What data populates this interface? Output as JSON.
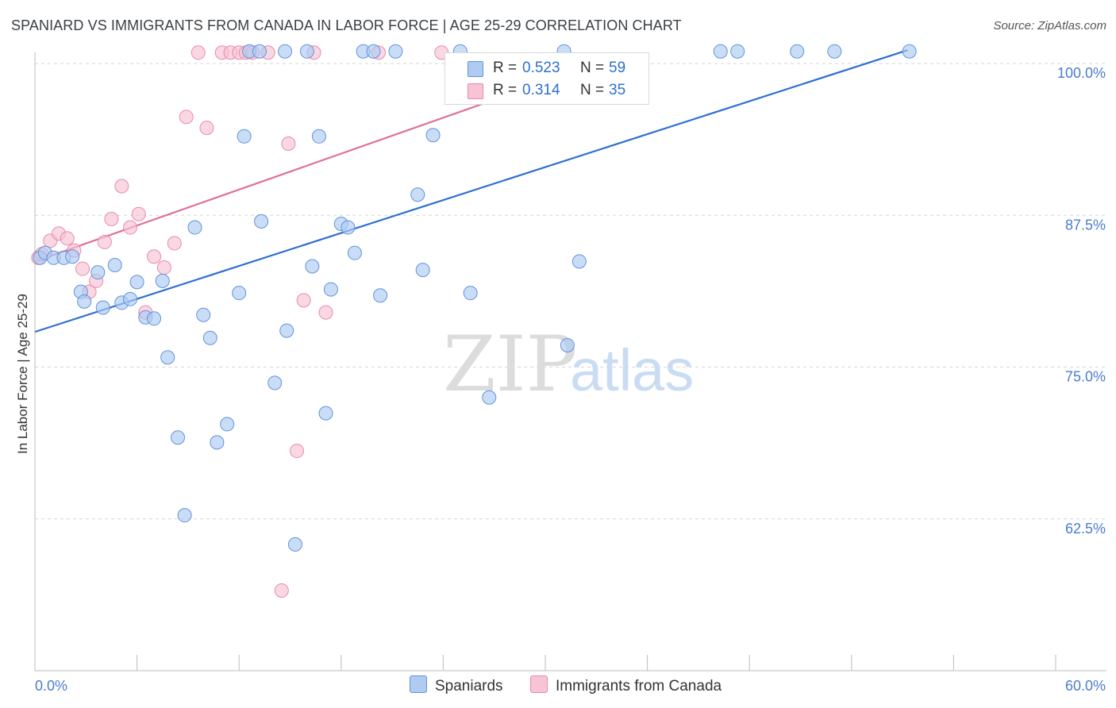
{
  "header": {
    "title": "SPANIARD VS IMMIGRANTS FROM CANADA IN LABOR FORCE | AGE 25-29 CORRELATION CHART",
    "source": "Source: ZipAtlas.com"
  },
  "watermark": {
    "zip": "ZIP",
    "atlas": "atlas"
  },
  "legend_top": [
    {
      "r_label": "R =",
      "r_value": "0.523",
      "n_label": "N =",
      "n_value": "59",
      "fill": "#aecbf2",
      "stroke": "#5f93dd"
    },
    {
      "r_label": "R =",
      "r_value": "0.314",
      "n_label": "N =",
      "n_value": "35",
      "fill": "#f8c3d4",
      "stroke": "#e98aa8"
    }
  ],
  "legend_bottom": [
    {
      "label": "Spaniards",
      "fill": "#aecbf2",
      "stroke": "#5f93dd"
    },
    {
      "label": "Immigrants from Canada",
      "fill": "#f8c3d4",
      "stroke": "#e98aa8"
    }
  ],
  "chart_data": {
    "type": "scatter",
    "title": "SPANIARD VS IMMIGRANTS FROM CANADA IN LABOR FORCE | AGE 25-29 CORRELATION CHART",
    "xlabel": "",
    "ylabel": "In Labor Force | Age 25-29",
    "xlim": [
      0,
      60
    ],
    "ylim": [
      50,
      100
    ],
    "x_tick_labels": [
      "0.0%",
      "60.0%"
    ],
    "y_ticks": [
      62.5,
      75.0,
      87.5,
      100.0
    ],
    "y_tick_labels": [
      "62.5%",
      "75.0%",
      "87.5%",
      "100.0%"
    ],
    "grid": "horizontal dashed",
    "legend_position": "top-center",
    "series": [
      {
        "name": "Spaniards",
        "color": "#5f93dd",
        "fill": "#aecbf2",
        "trend_line": {
          "x": [
            0,
            51.3
          ],
          "y": [
            77.9,
            101.1
          ]
        },
        "points": [
          [
            0.3,
            84.0
          ],
          [
            0.6,
            84.4
          ],
          [
            1.1,
            84.0
          ],
          [
            1.7,
            84.0
          ],
          [
            2.2,
            84.1
          ],
          [
            2.7,
            81.2
          ],
          [
            2.9,
            80.4
          ],
          [
            3.7,
            82.8
          ],
          [
            4.0,
            79.9
          ],
          [
            4.7,
            83.4
          ],
          [
            5.1,
            80.3
          ],
          [
            5.6,
            80.6
          ],
          [
            6.0,
            82.0
          ],
          [
            6.5,
            79.1
          ],
          [
            7.0,
            79.0
          ],
          [
            7.5,
            82.1
          ],
          [
            7.8,
            75.8
          ],
          [
            8.4,
            69.2
          ],
          [
            8.8,
            62.8
          ],
          [
            9.4,
            86.5
          ],
          [
            9.9,
            79.3
          ],
          [
            10.3,
            77.4
          ],
          [
            10.7,
            68.8
          ],
          [
            11.3,
            70.3
          ],
          [
            12.0,
            81.1
          ],
          [
            12.3,
            94.0
          ],
          [
            12.6,
            101.0
          ],
          [
            13.2,
            101.0
          ],
          [
            13.3,
            87.0
          ],
          [
            14.1,
            73.7
          ],
          [
            14.7,
            101.0
          ],
          [
            14.8,
            78.0
          ],
          [
            15.3,
            60.4
          ],
          [
            16.0,
            101.0
          ],
          [
            16.3,
            83.3
          ],
          [
            16.7,
            94.0
          ],
          [
            17.1,
            71.2
          ],
          [
            17.4,
            81.4
          ],
          [
            18.0,
            86.8
          ],
          [
            18.4,
            86.5
          ],
          [
            18.8,
            84.4
          ],
          [
            19.3,
            101.0
          ],
          [
            19.9,
            101.0
          ],
          [
            20.3,
            80.9
          ],
          [
            21.2,
            101.0
          ],
          [
            22.5,
            89.2
          ],
          [
            22.8,
            83.0
          ],
          [
            23.4,
            94.1
          ],
          [
            25.0,
            101.0
          ],
          [
            25.6,
            81.1
          ],
          [
            26.7,
            72.5
          ],
          [
            32.0,
            83.7
          ],
          [
            31.1,
            101.0
          ],
          [
            31.3,
            76.8
          ],
          [
            40.3,
            101.0
          ],
          [
            41.3,
            101.0
          ],
          [
            44.8,
            101.0
          ],
          [
            47.0,
            101.0
          ],
          [
            51.4,
            101.0
          ]
        ]
      },
      {
        "name": "Immigrants from Canada",
        "color": "#e98aa8",
        "fill": "#f8c3d4",
        "trend_line": {
          "x": [
            0,
            29.2
          ],
          "y": [
            83.7,
            98.1
          ]
        },
        "points": [
          [
            0.2,
            84.0
          ],
          [
            0.4,
            84.3
          ],
          [
            0.9,
            85.4
          ],
          [
            1.4,
            86.0
          ],
          [
            1.9,
            85.6
          ],
          [
            2.3,
            84.6
          ],
          [
            2.8,
            83.1
          ],
          [
            3.2,
            81.2
          ],
          [
            3.6,
            82.1
          ],
          [
            4.1,
            85.3
          ],
          [
            4.5,
            87.2
          ],
          [
            5.1,
            89.9
          ],
          [
            5.6,
            86.5
          ],
          [
            6.1,
            87.6
          ],
          [
            6.5,
            79.5
          ],
          [
            7.0,
            84.1
          ],
          [
            7.6,
            83.2
          ],
          [
            8.2,
            85.2
          ],
          [
            8.9,
            95.6
          ],
          [
            9.6,
            100.9
          ],
          [
            10.1,
            94.7
          ],
          [
            11.0,
            100.9
          ],
          [
            11.5,
            100.9
          ],
          [
            12.0,
            100.9
          ],
          [
            12.4,
            100.9
          ],
          [
            12.8,
            100.9
          ],
          [
            13.7,
            100.9
          ],
          [
            14.5,
            56.6
          ],
          [
            14.9,
            93.4
          ],
          [
            15.4,
            68.1
          ],
          [
            15.8,
            80.5
          ],
          [
            16.4,
            100.9
          ],
          [
            17.1,
            79.5
          ],
          [
            20.2,
            100.9
          ],
          [
            23.9,
            100.9
          ]
        ]
      }
    ]
  }
}
